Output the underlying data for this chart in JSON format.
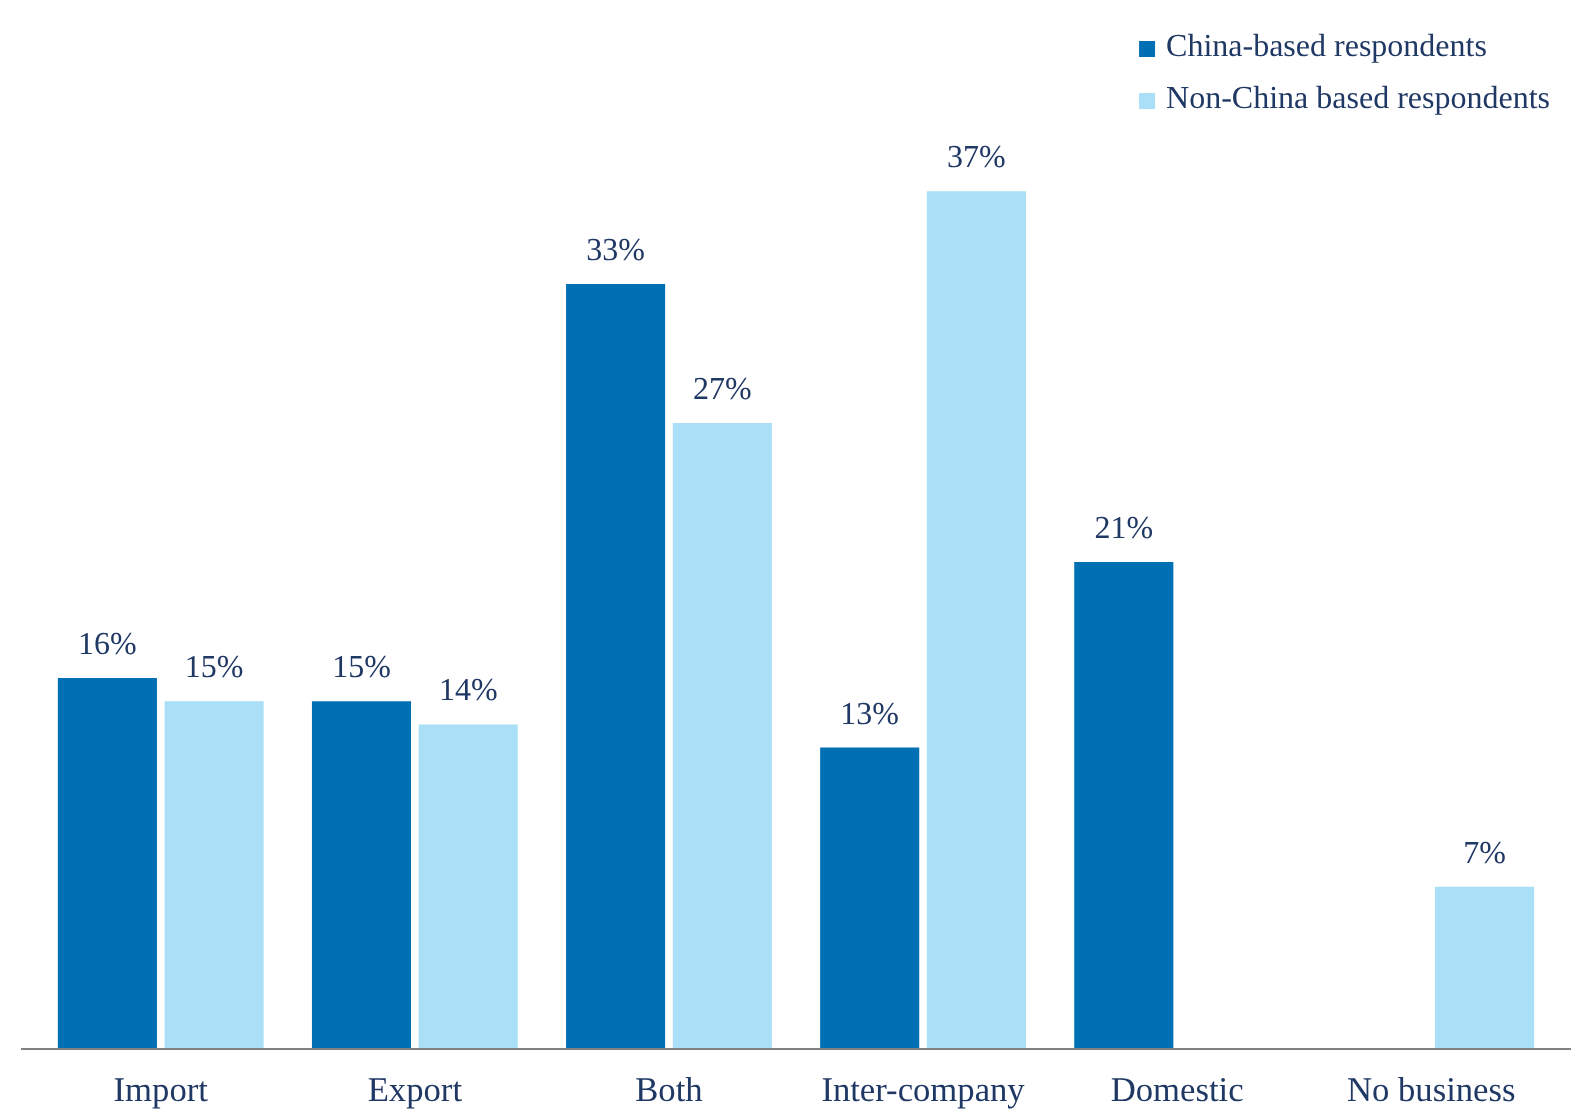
{
  "chart_data": {
    "type": "bar",
    "categories": [
      "Import",
      "Export",
      "Both",
      "Inter-company",
      "Domestic",
      "No business"
    ],
    "series": [
      {
        "name": "China-based respondents",
        "color": "#0070b5",
        "values": [
          16,
          15,
          33,
          13,
          21,
          null
        ],
        "value_labels": [
          "16%",
          "15%",
          "33%",
          "13%",
          "21%",
          null
        ]
      },
      {
        "name": "Non-China based respondents",
        "color": "#a9dff7",
        "values": [
          15,
          14,
          27,
          37,
          null,
          7
        ],
        "value_labels": [
          "15%",
          "14%",
          "27%",
          "37%",
          null,
          "7%"
        ]
      }
    ],
    "legend": "top right",
    "grid": false
  }
}
